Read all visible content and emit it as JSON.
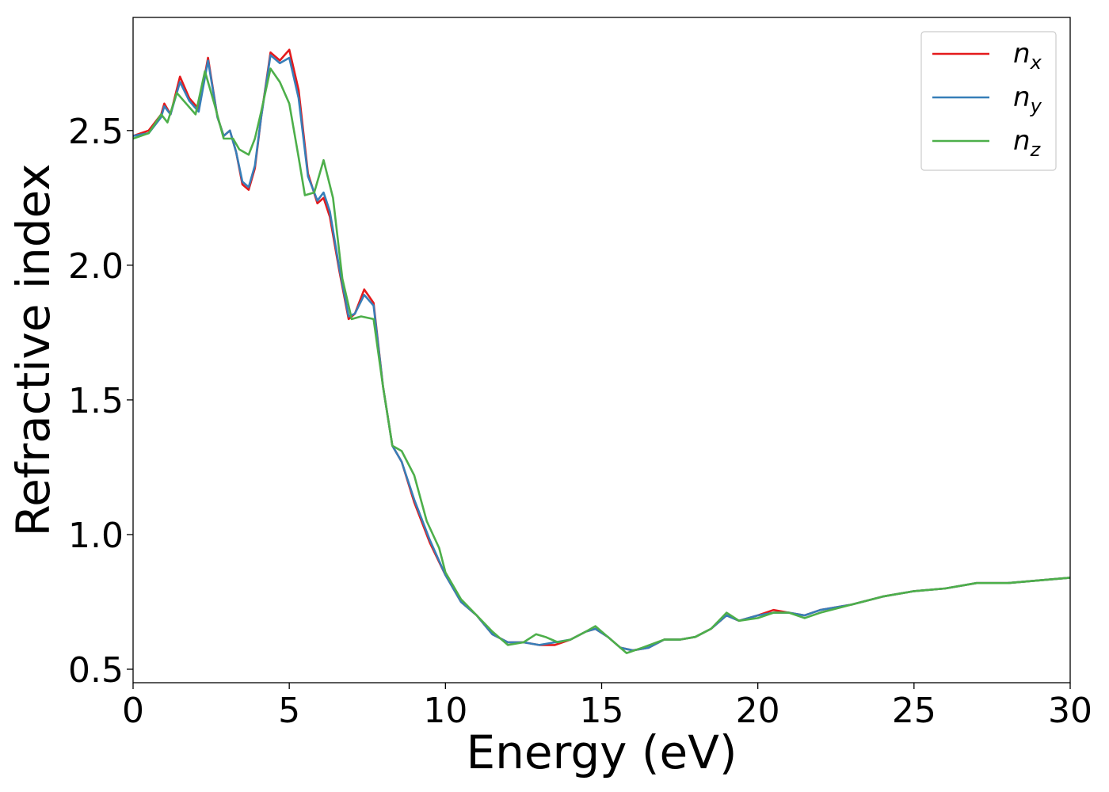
{
  "chart_data": {
    "type": "line",
    "xlabel": "Energy (eV)",
    "ylabel": "Refractive index",
    "xlim": [
      0,
      30
    ],
    "ylim": [
      0.45,
      2.92
    ],
    "xticks": [
      0,
      5,
      10,
      15,
      20,
      25,
      30
    ],
    "xtick_labels": [
      "0",
      "5",
      "10",
      "15",
      "20",
      "25",
      "30"
    ],
    "yticks": [
      0.5,
      1.0,
      1.5,
      2.0,
      2.5
    ],
    "ytick_labels": [
      "0.5",
      "1.0",
      "1.5",
      "2.0",
      "2.5"
    ],
    "grid": false,
    "legend_position": "top-right",
    "series": [
      {
        "name": "n",
        "subscript": "x",
        "color": "#e41a1c",
        "points": [
          [
            0,
            2.48
          ],
          [
            0.5,
            2.5
          ],
          [
            0.9,
            2.56
          ],
          [
            1.0,
            2.6
          ],
          [
            1.2,
            2.56
          ],
          [
            1.5,
            2.7
          ],
          [
            1.8,
            2.62
          ],
          [
            2.1,
            2.58
          ],
          [
            2.4,
            2.77
          ],
          [
            2.7,
            2.55
          ],
          [
            2.9,
            2.48
          ],
          [
            3.1,
            2.5
          ],
          [
            3.3,
            2.42
          ],
          [
            3.5,
            2.3
          ],
          [
            3.7,
            2.28
          ],
          [
            3.9,
            2.36
          ],
          [
            4.1,
            2.55
          ],
          [
            4.4,
            2.79
          ],
          [
            4.7,
            2.76
          ],
          [
            5.0,
            2.8
          ],
          [
            5.3,
            2.65
          ],
          [
            5.6,
            2.34
          ],
          [
            5.9,
            2.23
          ],
          [
            6.1,
            2.25
          ],
          [
            6.3,
            2.18
          ],
          [
            6.6,
            1.98
          ],
          [
            6.9,
            1.8
          ],
          [
            7.1,
            1.82
          ],
          [
            7.4,
            1.91
          ],
          [
            7.7,
            1.86
          ],
          [
            8.0,
            1.55
          ],
          [
            8.3,
            1.33
          ],
          [
            8.6,
            1.27
          ],
          [
            9.0,
            1.12
          ],
          [
            9.5,
            0.97
          ],
          [
            10.0,
            0.85
          ],
          [
            10.5,
            0.75
          ],
          [
            11.0,
            0.7
          ],
          [
            11.5,
            0.63
          ],
          [
            12.0,
            0.6
          ],
          [
            12.5,
            0.6
          ],
          [
            13.0,
            0.59
          ],
          [
            13.5,
            0.59
          ],
          [
            14.0,
            0.61
          ],
          [
            14.5,
            0.64
          ],
          [
            14.8,
            0.65
          ],
          [
            15.2,
            0.62
          ],
          [
            15.6,
            0.58
          ],
          [
            16.0,
            0.57
          ],
          [
            16.5,
            0.58
          ],
          [
            17.0,
            0.61
          ],
          [
            17.5,
            0.61
          ],
          [
            18.0,
            0.62
          ],
          [
            18.5,
            0.65
          ],
          [
            19.0,
            0.7
          ],
          [
            19.4,
            0.68
          ],
          [
            20.0,
            0.7
          ],
          [
            20.5,
            0.72
          ],
          [
            21.0,
            0.71
          ],
          [
            21.5,
            0.7
          ],
          [
            22.0,
            0.72
          ],
          [
            23.0,
            0.74
          ],
          [
            24.0,
            0.77
          ],
          [
            25.0,
            0.79
          ],
          [
            26.0,
            0.8
          ],
          [
            27.0,
            0.82
          ],
          [
            28.0,
            0.82
          ],
          [
            29.0,
            0.83
          ],
          [
            30.0,
            0.84
          ]
        ]
      },
      {
        "name": "n",
        "subscript": "y",
        "color": "#377eb8",
        "points": [
          [
            0,
            2.48
          ],
          [
            0.5,
            2.49
          ],
          [
            0.9,
            2.55
          ],
          [
            1.0,
            2.59
          ],
          [
            1.2,
            2.56
          ],
          [
            1.5,
            2.68
          ],
          [
            1.8,
            2.61
          ],
          [
            2.1,
            2.57
          ],
          [
            2.4,
            2.76
          ],
          [
            2.7,
            2.55
          ],
          [
            2.9,
            2.48
          ],
          [
            3.1,
            2.5
          ],
          [
            3.3,
            2.42
          ],
          [
            3.5,
            2.31
          ],
          [
            3.7,
            2.29
          ],
          [
            3.9,
            2.37
          ],
          [
            4.1,
            2.55
          ],
          [
            4.4,
            2.78
          ],
          [
            4.7,
            2.75
          ],
          [
            5.0,
            2.77
          ],
          [
            5.3,
            2.62
          ],
          [
            5.6,
            2.33
          ],
          [
            5.9,
            2.24
          ],
          [
            6.1,
            2.27
          ],
          [
            6.3,
            2.2
          ],
          [
            6.6,
            1.99
          ],
          [
            6.9,
            1.81
          ],
          [
            7.1,
            1.82
          ],
          [
            7.4,
            1.89
          ],
          [
            7.7,
            1.85
          ],
          [
            8.0,
            1.55
          ],
          [
            8.3,
            1.33
          ],
          [
            8.6,
            1.27
          ],
          [
            9.0,
            1.13
          ],
          [
            9.5,
            0.98
          ],
          [
            10.0,
            0.85
          ],
          [
            10.5,
            0.75
          ],
          [
            11.0,
            0.7
          ],
          [
            11.5,
            0.63
          ],
          [
            12.0,
            0.6
          ],
          [
            12.5,
            0.6
          ],
          [
            13.0,
            0.59
          ],
          [
            13.5,
            0.6
          ],
          [
            14.0,
            0.61
          ],
          [
            14.5,
            0.64
          ],
          [
            14.8,
            0.65
          ],
          [
            15.2,
            0.62
          ],
          [
            15.6,
            0.58
          ],
          [
            16.0,
            0.57
          ],
          [
            16.5,
            0.58
          ],
          [
            17.0,
            0.61
          ],
          [
            17.5,
            0.61
          ],
          [
            18.0,
            0.62
          ],
          [
            18.5,
            0.65
          ],
          [
            19.0,
            0.7
          ],
          [
            19.4,
            0.68
          ],
          [
            20.0,
            0.7
          ],
          [
            20.5,
            0.71
          ],
          [
            21.0,
            0.71
          ],
          [
            21.5,
            0.7
          ],
          [
            22.0,
            0.72
          ],
          [
            23.0,
            0.74
          ],
          [
            24.0,
            0.77
          ],
          [
            25.0,
            0.79
          ],
          [
            26.0,
            0.8
          ],
          [
            27.0,
            0.82
          ],
          [
            28.0,
            0.82
          ],
          [
            29.0,
            0.83
          ],
          [
            30.0,
            0.84
          ]
        ]
      },
      {
        "name": "n",
        "subscript": "z",
        "color": "#4daf4a",
        "points": [
          [
            0,
            2.47
          ],
          [
            0.5,
            2.49
          ],
          [
            0.9,
            2.56
          ],
          [
            1.1,
            2.53
          ],
          [
            1.4,
            2.64
          ],
          [
            1.7,
            2.6
          ],
          [
            2.0,
            2.56
          ],
          [
            2.3,
            2.72
          ],
          [
            2.6,
            2.6
          ],
          [
            2.9,
            2.47
          ],
          [
            3.2,
            2.47
          ],
          [
            3.4,
            2.43
          ],
          [
            3.7,
            2.41
          ],
          [
            3.9,
            2.47
          ],
          [
            4.1,
            2.57
          ],
          [
            4.4,
            2.73
          ],
          [
            4.7,
            2.68
          ],
          [
            5.0,
            2.6
          ],
          [
            5.3,
            2.4
          ],
          [
            5.5,
            2.26
          ],
          [
            5.8,
            2.27
          ],
          [
            6.1,
            2.39
          ],
          [
            6.4,
            2.25
          ],
          [
            6.7,
            1.95
          ],
          [
            7.0,
            1.8
          ],
          [
            7.3,
            1.81
          ],
          [
            7.7,
            1.8
          ],
          [
            8.0,
            1.55
          ],
          [
            8.3,
            1.33
          ],
          [
            8.6,
            1.31
          ],
          [
            9.0,
            1.22
          ],
          [
            9.4,
            1.05
          ],
          [
            9.8,
            0.95
          ],
          [
            10.0,
            0.86
          ],
          [
            10.5,
            0.76
          ],
          [
            11.0,
            0.7
          ],
          [
            11.5,
            0.64
          ],
          [
            12.0,
            0.59
          ],
          [
            12.5,
            0.6
          ],
          [
            12.9,
            0.63
          ],
          [
            13.2,
            0.62
          ],
          [
            13.6,
            0.6
          ],
          [
            14.0,
            0.61
          ],
          [
            14.5,
            0.64
          ],
          [
            14.8,
            0.66
          ],
          [
            15.2,
            0.62
          ],
          [
            15.8,
            0.56
          ],
          [
            16.3,
            0.58
          ],
          [
            17.0,
            0.61
          ],
          [
            17.5,
            0.61
          ],
          [
            18.0,
            0.62
          ],
          [
            18.5,
            0.65
          ],
          [
            19.0,
            0.71
          ],
          [
            19.4,
            0.68
          ],
          [
            20.0,
            0.69
          ],
          [
            20.5,
            0.71
          ],
          [
            21.0,
            0.71
          ],
          [
            21.5,
            0.69
          ],
          [
            22.0,
            0.71
          ],
          [
            23.0,
            0.74
          ],
          [
            24.0,
            0.77
          ],
          [
            25.0,
            0.79
          ],
          [
            26.0,
            0.8
          ],
          [
            27.0,
            0.82
          ],
          [
            28.0,
            0.82
          ],
          [
            29.0,
            0.83
          ],
          [
            30.0,
            0.84
          ]
        ]
      }
    ]
  }
}
